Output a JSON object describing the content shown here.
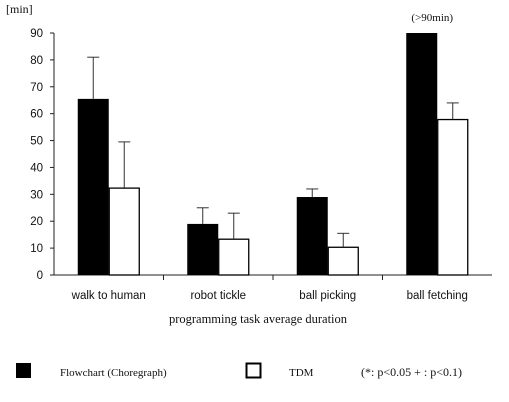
{
  "chart_data": {
    "type": "bar",
    "y_unit": "[min]",
    "xlabel": "programming task average duration",
    "categories": [
      "walk to human",
      "robot tickle",
      "ball picking",
      "ball fetching"
    ],
    "ylim": [
      0,
      90
    ],
    "yticks": [
      0,
      10,
      20,
      30,
      40,
      50,
      60,
      70,
      80,
      90
    ],
    "grid": false,
    "legend_position": "bottom",
    "series": [
      {
        "name": "Flowchart (Choregraph)",
        "fill": "#000000",
        "values": [
          65.5,
          19,
          29,
          90
        ],
        "error_upper": [
          81,
          25,
          32,
          null
        ]
      },
      {
        "name": "TDM",
        "fill": "#ffffff",
        "values": [
          32.5,
          13.5,
          10.5,
          58
        ],
        "error_upper": [
          49.5,
          23,
          15.5,
          64
        ]
      }
    ],
    "annotations": [
      {
        "text": "(>90min)",
        "category": "ball fetching"
      }
    ],
    "significance_note": "(*: p<0.05 + : p<0.1)"
  }
}
